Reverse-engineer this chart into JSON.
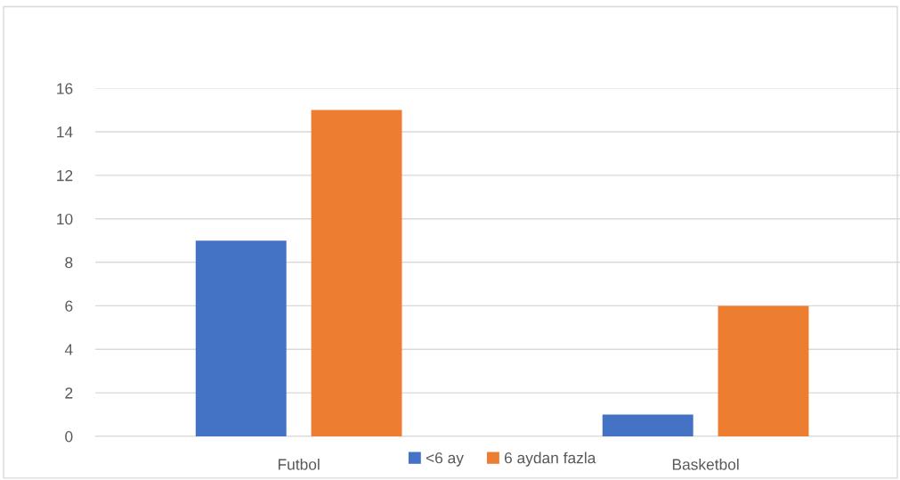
{
  "chart_data": {
    "type": "bar",
    "categories": [
      "Futbol",
      "Basketbol"
    ],
    "series": [
      {
        "name": "<6 ay",
        "color": "#4472c4",
        "values": [
          9,
          1
        ]
      },
      {
        "name": "6 aydan fazla",
        "color": "#ed7d31",
        "values": [
          15,
          6
        ]
      }
    ],
    "ylim": [
      0,
      16
    ],
    "yticks": [
      0,
      2,
      4,
      6,
      8,
      10,
      12,
      14,
      16
    ],
    "grid": "y",
    "legend": "bottom"
  }
}
